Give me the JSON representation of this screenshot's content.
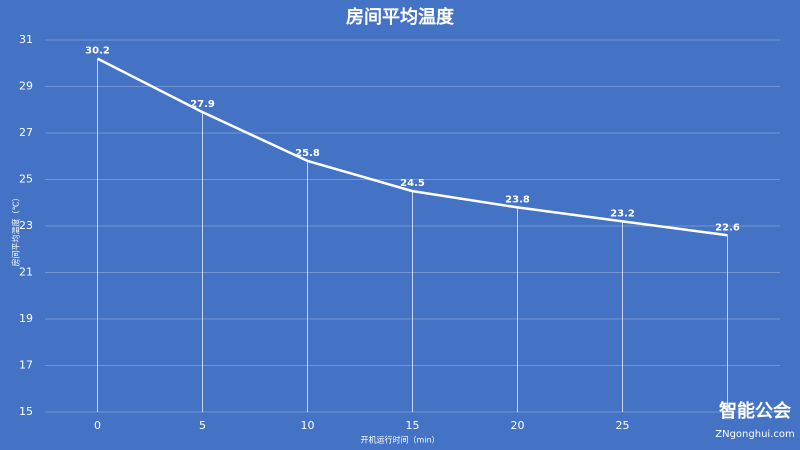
{
  "chart_data": {
    "type": "line",
    "title": "房间平均温度",
    "x_label": "开机运行时间（min）",
    "y_label": "房间平均温度（℃）",
    "x": [
      0,
      5,
      10,
      15,
      20,
      25,
      30
    ],
    "series": [
      {
        "name": "房间平均温度",
        "color": "#ffffff",
        "values": [
          30.2,
          27.9,
          25.8,
          24.5,
          23.8,
          23.2,
          22.6
        ]
      }
    ],
    "xlim": [
      -2.5,
      32.5
    ],
    "xticks": [
      0,
      5,
      10,
      15,
      20,
      25
    ],
    "ylim": [
      15,
      31
    ],
    "yticks": [
      15,
      17,
      19,
      21,
      23,
      25,
      27,
      29,
      31
    ],
    "grid": true,
    "data_labels": true,
    "drop_lines": true
  },
  "watermark": {
    "logo": "智能公会",
    "site": "ZNgonghui.com"
  }
}
